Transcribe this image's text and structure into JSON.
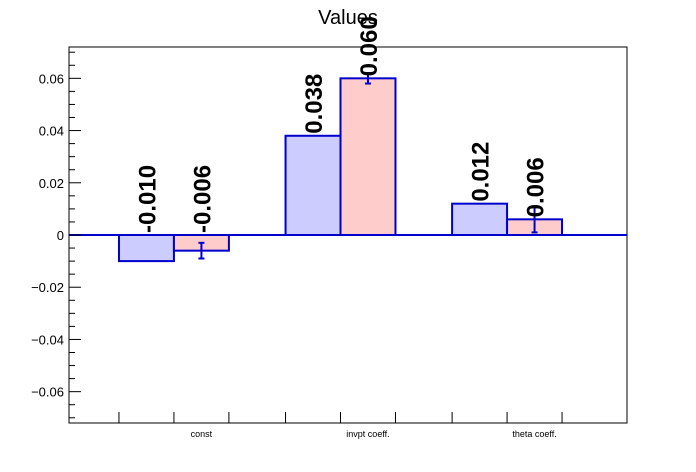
{
  "chart_data": {
    "type": "bar",
    "title": "Values",
    "categories": [
      "const",
      "invpt coeff.",
      "theta coeff."
    ],
    "series": [
      {
        "color": "#ccccff",
        "edge": "#0000cc",
        "values": [
          -0.01,
          0.038,
          0.012
        ],
        "labels": [
          "-0.010",
          "0.038",
          "0.012"
        ],
        "errors": [
          0,
          0,
          0
        ]
      },
      {
        "color": "#ffcccc",
        "edge": "#0000cc",
        "values": [
          -0.006,
          0.06,
          0.006
        ],
        "labels": [
          "-0.006",
          "0.060",
          "0.006"
        ],
        "errors": [
          0.003,
          0.002,
          0.005
        ]
      }
    ],
    "ylim": [
      -0.072,
      0.072
    ],
    "yticks": [
      -0.06,
      -0.04,
      -0.02,
      0,
      0.02,
      0.04,
      0.06
    ],
    "ytick_labels": [
      "−0.06",
      "−0.04",
      "−0.02",
      "0",
      "0.02",
      "0.04",
      "0.06"
    ],
    "grid": false,
    "xlabel": "",
    "ylabel": ""
  }
}
